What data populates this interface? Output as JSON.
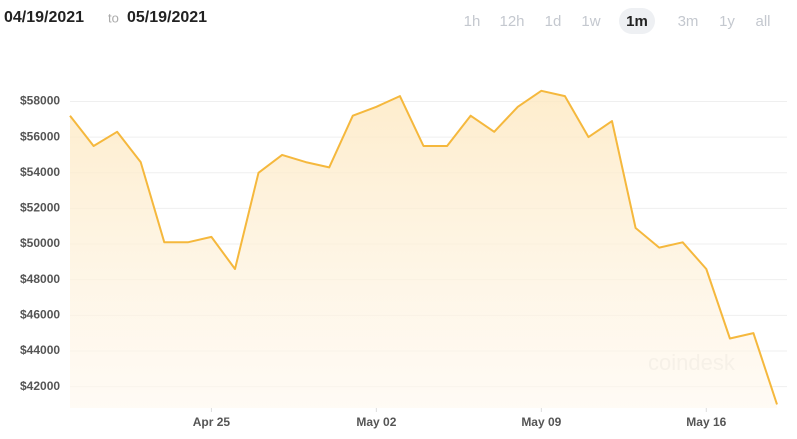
{
  "header": {
    "start_date": "04/19/2021",
    "to": "to",
    "end_date": "05/19/2021"
  },
  "range_buttons": [
    "1h",
    "12h",
    "1d",
    "1w",
    "1m",
    "3m",
    "1y",
    "all"
  ],
  "selected_range": "1m",
  "watermark": "coindesk",
  "chart_data": {
    "type": "line",
    "color": "#f5b83d",
    "x": [
      "2021-04-19",
      "2021-04-20",
      "2021-04-21",
      "2021-04-22",
      "2021-04-23",
      "2021-04-24",
      "2021-04-25",
      "2021-04-26",
      "2021-04-27",
      "2021-04-28",
      "2021-04-29",
      "2021-04-30",
      "2021-05-01",
      "2021-05-02",
      "2021-05-03",
      "2021-05-04",
      "2021-05-05",
      "2021-05-06",
      "2021-05-07",
      "2021-05-08",
      "2021-05-09",
      "2021-05-10",
      "2021-05-11",
      "2021-05-12",
      "2021-05-13",
      "2021-05-14",
      "2021-05-15",
      "2021-05-16",
      "2021-05-17",
      "2021-05-18",
      "2021-05-19"
    ],
    "values": [
      57200,
      55500,
      56300,
      54600,
      50100,
      50100,
      50400,
      48600,
      54000,
      55000,
      54600,
      54300,
      57200,
      57700,
      58300,
      55500,
      55500,
      57200,
      56300,
      57700,
      58600,
      58300,
      56000,
      56900,
      50900,
      49800,
      50100,
      48600,
      44700,
      45000,
      41000
    ],
    "xlim": [
      "2021-04-19",
      "2021-05-19"
    ],
    "xticks": [
      {
        "value": "2021-04-25",
        "label": "Apr 25"
      },
      {
        "value": "2021-05-02",
        "label": "May 02"
      },
      {
        "value": "2021-05-09",
        "label": "May 09"
      },
      {
        "value": "2021-05-16",
        "label": "May 16"
      }
    ],
    "ylim": [
      40800,
      61000
    ],
    "yticks": [
      {
        "value": 42000,
        "label": "$42000"
      },
      {
        "value": 44000,
        "label": "$44000"
      },
      {
        "value": 46000,
        "label": "$46000"
      },
      {
        "value": 48000,
        "label": "$48000"
      },
      {
        "value": 50000,
        "label": "$50000"
      },
      {
        "value": 52000,
        "label": "$52000"
      },
      {
        "value": 54000,
        "label": "$54000"
      },
      {
        "value": 56000,
        "label": "$56000"
      },
      {
        "value": 58000,
        "label": "$58000"
      }
    ],
    "grid": true
  }
}
